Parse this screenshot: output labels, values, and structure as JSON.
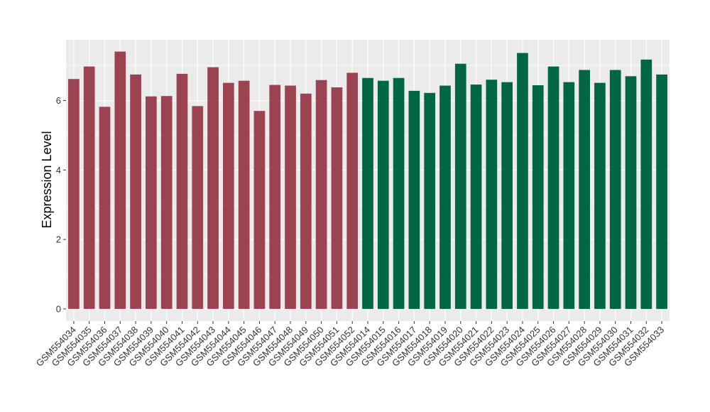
{
  "chart_data": {
    "type": "bar",
    "title": "",
    "xlabel": "",
    "ylabel": "Expression Level",
    "ylim": [
      -0.35,
      7.75
    ],
    "yticks": [
      0,
      2,
      4,
      6
    ],
    "grid": true,
    "legend": "none",
    "colors": {
      "group1": "#9b4350",
      "group2": "#006644",
      "panel": "#ebebeb",
      "grid": "#ffffff"
    },
    "categories": [
      "GSM554034",
      "GSM554035",
      "GSM554036",
      "GSM554037",
      "GSM554038",
      "GSM554039",
      "GSM554040",
      "GSM554041",
      "GSM554042",
      "GSM554043",
      "GSM554044",
      "GSM554045",
      "GSM554046",
      "GSM554047",
      "GSM554048",
      "GSM554049",
      "GSM554050",
      "GSM554051",
      "GSM554052",
      "GSM554014",
      "GSM554015",
      "GSM554016",
      "GSM554017",
      "GSM554018",
      "GSM554019",
      "GSM554020",
      "GSM554021",
      "GSM554022",
      "GSM554023",
      "GSM554024",
      "GSM554025",
      "GSM554026",
      "GSM554027",
      "GSM554028",
      "GSM554029",
      "GSM554030",
      "GSM554031",
      "GSM554032",
      "GSM554033"
    ],
    "values": [
      6.62,
      6.98,
      5.82,
      7.41,
      6.75,
      6.12,
      6.13,
      6.77,
      5.84,
      6.96,
      6.51,
      6.57,
      5.7,
      6.45,
      6.43,
      6.2,
      6.59,
      6.38,
      6.8,
      6.65,
      6.57,
      6.65,
      6.28,
      6.22,
      6.43,
      7.06,
      6.46,
      6.6,
      6.53,
      7.37,
      6.44,
      6.98,
      6.53,
      6.88,
      6.51,
      6.88,
      6.7,
      7.18,
      6.75
    ],
    "group_sizes": [
      19,
      20
    ]
  }
}
